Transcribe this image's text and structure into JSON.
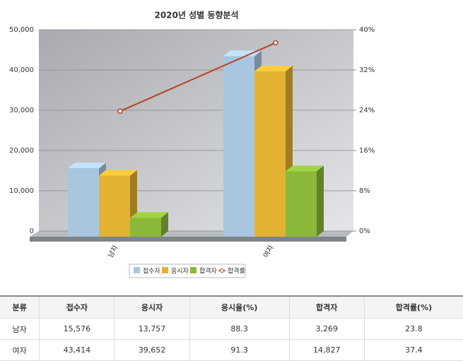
{
  "chart_data": {
    "type": "bar",
    "title": "2020년 성별 동향분석",
    "categories": [
      "남자",
      "여자"
    ],
    "series": [
      {
        "name": "접수자",
        "color": "#a9c6e0",
        "values": [
          15576,
          43414
        ]
      },
      {
        "name": "응시자",
        "color": "#e4b232",
        "values": [
          13757,
          39652
        ]
      },
      {
        "name": "합격자",
        "color": "#8cb83a",
        "values": [
          3269,
          14827
        ]
      },
      {
        "name": "합격률",
        "type": "line",
        "axis": "y2",
        "color": "#b9401e",
        "values": [
          23.8,
          37.4
        ]
      }
    ],
    "ylim": [
      0,
      50000
    ],
    "yticks": [
      0,
      {
        "value": 10000,
        "label": "10,000"
      },
      {
        "value": 20000,
        "label": "20,000"
      },
      {
        "value": 30000,
        "label": "30,000"
      },
      {
        "value": 40000,
        "label": "40,000"
      },
      {
        "value": 50000,
        "label": "50,000"
      }
    ],
    "y2lim": [
      0,
      40
    ],
    "y2ticks": [
      {
        "value": 0,
        "label": "0%"
      },
      {
        "value": 8,
        "label": "8%"
      },
      {
        "value": 16,
        "label": "16%"
      },
      {
        "value": 24,
        "label": "24%"
      },
      {
        "value": 32,
        "label": "32%"
      },
      {
        "value": 40,
        "label": "40%"
      }
    ],
    "grid": true,
    "legend": "bottom"
  },
  "table": {
    "header": [
      "분류",
      "접수자",
      "응시자",
      "응시율(%)",
      "합격자",
      "합격률(%)"
    ],
    "rows": [
      [
        "남자",
        "15,576",
        "13,757",
        "88.3",
        "3,269",
        "23.8"
      ],
      [
        "여자",
        "43,414",
        "39,652",
        "91.3",
        "14,827",
        "37.4"
      ]
    ]
  }
}
